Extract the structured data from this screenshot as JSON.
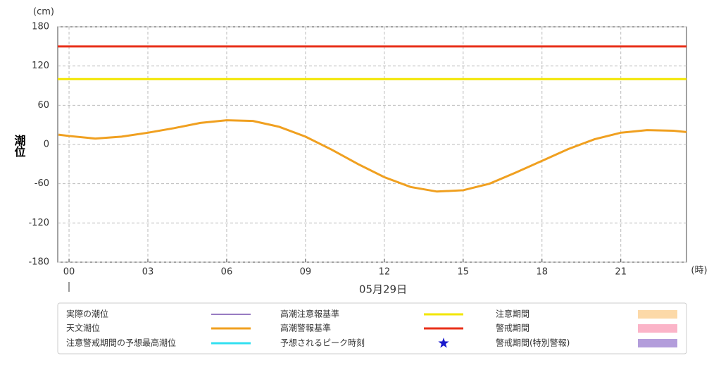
{
  "chart_data": {
    "type": "line",
    "y_unit": "(cm)",
    "y_label": "潮位",
    "x_unit": "(時)",
    "x_label": "05月29日",
    "x": [
      -0.4,
      0,
      1,
      2,
      3,
      4,
      5,
      6,
      7,
      8,
      9,
      10,
      11,
      12,
      13,
      14,
      15,
      16,
      17,
      18,
      19,
      20,
      21,
      22,
      23,
      23.5
    ],
    "series": [
      {
        "name": "天文潮位",
        "color": "#f0a020",
        "values": [
          15,
          13,
          9,
          12,
          18,
          25,
          33,
          37,
          36,
          27,
          12,
          -8,
          -30,
          -50,
          -65,
          -72,
          -70,
          -60,
          -43,
          -25,
          -7,
          8,
          18,
          22,
          21,
          19
        ]
      }
    ],
    "reference_lines": [
      {
        "name": "高潮注意報基準",
        "value": 100,
        "color": "#f2e600"
      },
      {
        "name": "高潮警報基準",
        "value": 150,
        "color": "#e8301a"
      }
    ],
    "xlim": [
      -0.43,
      23.5
    ],
    "ylim": [
      -180,
      180
    ],
    "xticks": [
      {
        "value": 0,
        "label": "00"
      },
      {
        "value": 3,
        "label": "03"
      },
      {
        "value": 6,
        "label": "06"
      },
      {
        "value": 9,
        "label": "09"
      },
      {
        "value": 12,
        "label": "12"
      },
      {
        "value": 15,
        "label": "15"
      },
      {
        "value": 18,
        "label": "18"
      },
      {
        "value": 21,
        "label": "21"
      }
    ],
    "yticks": [
      -180,
      -120,
      -60,
      0,
      60,
      120,
      180
    ],
    "grid": true,
    "legend": [
      {
        "name": "実際の潮位",
        "color": "#5b2c9e",
        "shape": "thin-line"
      },
      {
        "name": "天文潮位",
        "color": "#f0a020",
        "shape": "line"
      },
      {
        "name": "注意警戒期間の予想最高潮位",
        "color": "#33e0f0",
        "shape": "line"
      },
      {
        "name": "高潮注意報基準",
        "color": "#f2e600",
        "shape": "line"
      },
      {
        "name": "高潮警報基準",
        "color": "#e8301a",
        "shape": "line"
      },
      {
        "name": "予想されるピーク時刻",
        "color": "#1a1acc",
        "shape": "star"
      },
      {
        "name": "注意期間",
        "color": "#fcd9a8",
        "shape": "band"
      },
      {
        "name": "警戒期間",
        "color": "#fbb4c8",
        "shape": "band"
      },
      {
        "name": "警戒期間(特別警報)",
        "color": "#b39ddb",
        "shape": "band"
      }
    ]
  }
}
